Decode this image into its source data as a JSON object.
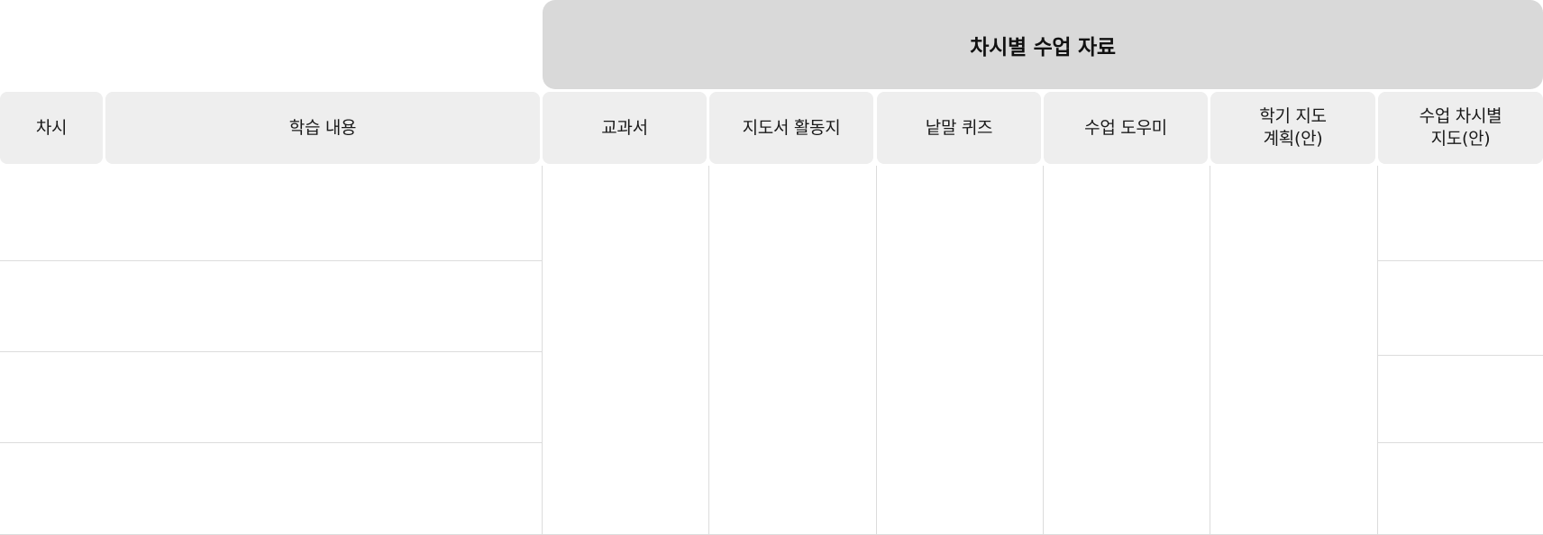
{
  "table": {
    "group_header": "차시별 수업 자료",
    "columns": [
      {
        "key": "session",
        "label": "차시"
      },
      {
        "key": "learning-content",
        "label": "학습 내용"
      },
      {
        "key": "textbook",
        "label": "교과서"
      },
      {
        "key": "guide-activity-sheet",
        "label": "지도서 활동지"
      },
      {
        "key": "word-quiz",
        "label": "낱말 퀴즈"
      },
      {
        "key": "class-helper",
        "label": "수업 도우미"
      },
      {
        "key": "semester-plan",
        "label": "학기 지도\n계획(안)"
      },
      {
        "key": "session-guide",
        "label": "수업 차시별\n지도(안)"
      }
    ]
  }
}
